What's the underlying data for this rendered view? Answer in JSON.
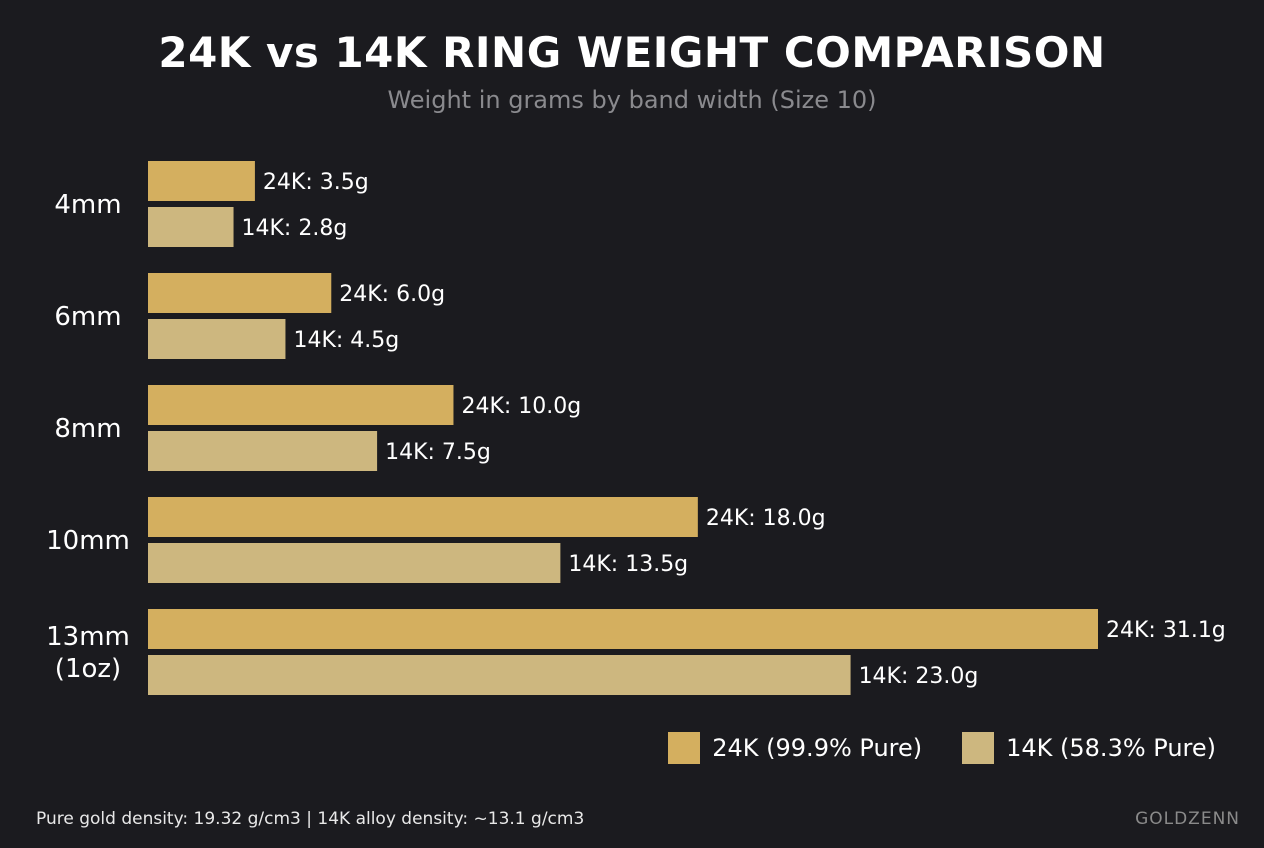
{
  "chart_data": {
    "type": "bar",
    "orientation": "horizontal",
    "title": "24K vs 14K RING WEIGHT COMPARISON",
    "subtitle": "Weight in grams by band width (Size 10)",
    "categories": [
      "4mm",
      "6mm",
      "8mm",
      "10mm",
      "13mm\n(1oz)"
    ],
    "series": [
      {
        "name": "24K (99.9% Pure)",
        "prefix": "24K",
        "color": "#d4af5f",
        "values": [
          3.5,
          6.0,
          10.0,
          18.0,
          31.1
        ]
      },
      {
        "name": "14K (58.3% Pure)",
        "prefix": "14K",
        "color": "#cdb77f",
        "values": [
          2.8,
          4.5,
          7.5,
          13.5,
          23.0
        ]
      }
    ],
    "unit": "g",
    "grid": false,
    "legend_position": "bottom-right"
  },
  "footer": {
    "note": "Pure gold density: 19.32 g/cm3 | 14K alloy density: ~13.1 g/cm3",
    "brand": "GOLDZENN"
  },
  "colors": {
    "background": "#1b1b1f"
  }
}
